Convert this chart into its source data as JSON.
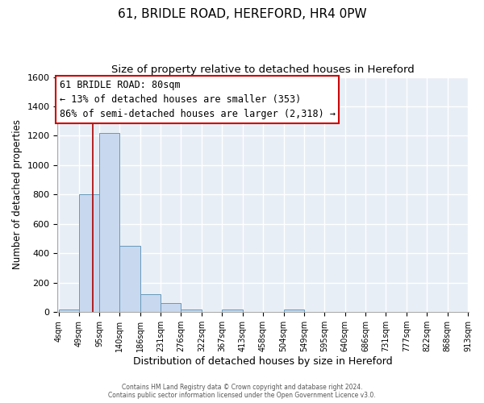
{
  "title": "61, BRIDLE ROAD, HEREFORD, HR4 0PW",
  "subtitle": "Size of property relative to detached houses in Hereford",
  "xlabel": "Distribution of detached houses by size in Hereford",
  "ylabel": "Number of detached properties",
  "bin_edges": [
    4,
    49,
    95,
    140,
    186,
    231,
    276,
    322,
    367,
    413,
    458,
    504,
    549,
    595,
    640,
    686,
    731,
    777,
    822,
    868,
    913
  ],
  "bar_heights": [
    20,
    800,
    1220,
    450,
    120,
    60,
    20,
    0,
    20,
    0,
    0,
    15,
    0,
    0,
    0,
    0,
    0,
    0,
    0,
    0
  ],
  "bar_color": "#c8d8ee",
  "bar_edge_color": "#6699bb",
  "property_line_x": 80,
  "property_line_color": "#aa0000",
  "annotation_line1": "61 BRIDLE ROAD: 80sqm",
  "annotation_line2": "← 13% of detached houses are smaller (353)",
  "annotation_line3": "86% of semi-detached houses are larger (2,318) →",
  "annotation_box_color": "#cc0000",
  "ylim": [
    0,
    1600
  ],
  "yticks": [
    0,
    200,
    400,
    600,
    800,
    1000,
    1200,
    1400,
    1600
  ],
  "background_color": "#e8eef6",
  "grid_color": "#ffffff",
  "footer_line1": "Contains HM Land Registry data © Crown copyright and database right 2024.",
  "footer_line2": "Contains public sector information licensed under the Open Government Licence v3.0.",
  "title_fontsize": 11,
  "subtitle_fontsize": 9.5,
  "annotation_fontsize": 8.5,
  "tick_label_fontsize": 7,
  "ylabel_fontsize": 8.5,
  "xlabel_fontsize": 9
}
